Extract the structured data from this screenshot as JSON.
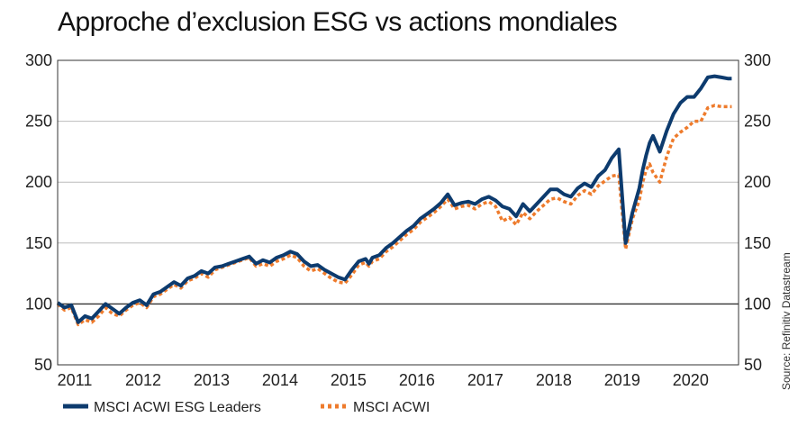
{
  "title": "Approche d’exclusion ESG vs actions mondiales",
  "source": "Source: Refinitiv Datastream",
  "colors": {
    "esg": "#0d3b6e",
    "acwi": "#ee7b2c",
    "grid": "#bbbbbb",
    "baseline": "#333333"
  },
  "chart_data": {
    "type": "line",
    "title": "Approche d’exclusion ESG vs actions mondiales",
    "xlabel": "",
    "ylabel": "",
    "xlim": [
      2011.0,
      2020.95
    ],
    "ylim": [
      50,
      300
    ],
    "y_ticks": [
      50,
      100,
      150,
      200,
      250,
      300
    ],
    "x_tick_labels": [
      "2011",
      "2012",
      "2013",
      "2014",
      "2015",
      "2016",
      "2017",
      "2018",
      "2019",
      "2020"
    ],
    "x_tick_values": [
      2011,
      2012,
      2013,
      2014,
      2015,
      2016,
      2017,
      2018,
      2019,
      2020
    ],
    "reference_line": 100,
    "grid": true,
    "dual_y_axis": true,
    "legend_position": "bottom",
    "series": [
      {
        "name": "MSCI ACWI ESG Leaders",
        "style": "solid",
        "x": [
          2011.0,
          2011.1,
          2011.2,
          2011.3,
          2011.4,
          2011.5,
          2011.6,
          2011.7,
          2011.8,
          2011.9,
          2012.0,
          2012.1,
          2012.2,
          2012.3,
          2012.4,
          2012.5,
          2012.6,
          2012.7,
          2012.8,
          2012.9,
          2013.0,
          2013.1,
          2013.2,
          2013.3,
          2013.4,
          2013.5,
          2013.6,
          2013.7,
          2013.8,
          2013.9,
          2014.0,
          2014.1,
          2014.2,
          2014.3,
          2014.4,
          2014.5,
          2014.6,
          2014.7,
          2014.8,
          2014.9,
          2015.0,
          2015.1,
          2015.2,
          2015.3,
          2015.4,
          2015.5,
          2015.55,
          2015.6,
          2015.7,
          2015.8,
          2015.9,
          2016.0,
          2016.1,
          2016.2,
          2016.3,
          2016.4,
          2016.5,
          2016.6,
          2016.7,
          2016.8,
          2016.9,
          2017.0,
          2017.1,
          2017.2,
          2017.3,
          2017.4,
          2017.5,
          2017.6,
          2017.7,
          2017.8,
          2017.9,
          2018.0,
          2018.1,
          2018.2,
          2018.3,
          2018.4,
          2018.5,
          2018.6,
          2018.7,
          2018.8,
          2018.9,
          2019.0,
          2019.1,
          2019.2,
          2019.3,
          2019.4,
          2019.5,
          2019.55,
          2019.6,
          2019.65,
          2019.7,
          2019.8,
          2019.9,
          2020.0,
          2020.1,
          2020.2,
          2020.3,
          2020.4,
          2020.5,
          2020.6,
          2020.7,
          2020.8,
          2020.85
        ],
        "values": [
          101,
          97,
          99,
          85,
          90,
          88,
          94,
          100,
          96,
          92,
          97,
          101,
          103,
          99,
          108,
          110,
          114,
          118,
          115,
          121,
          123,
          127,
          125,
          130,
          131,
          133,
          135,
          137,
          139,
          133,
          136,
          134,
          138,
          140,
          143,
          141,
          135,
          131,
          132,
          128,
          125,
          122,
          120,
          128,
          135,
          137,
          133,
          138,
          140,
          146,
          150,
          155,
          160,
          164,
          170,
          174,
          178,
          183,
          190,
          181,
          183,
          184,
          182,
          186,
          188,
          185,
          180,
          178,
          172,
          182,
          176,
          182,
          188,
          194,
          194,
          190,
          188,
          195,
          199,
          196,
          205,
          210,
          220,
          227,
          150,
          175,
          195,
          210,
          222,
          232,
          238,
          225,
          242,
          256,
          265,
          270,
          270,
          277,
          286,
          287,
          286,
          285,
          285
        ],
        "color": "#0d3b6e"
      },
      {
        "name": "MSCI ACWI",
        "style": "dotted",
        "x": [
          2011.0,
          2011.1,
          2011.2,
          2011.3,
          2011.4,
          2011.5,
          2011.6,
          2011.7,
          2011.8,
          2011.9,
          2012.0,
          2012.1,
          2012.2,
          2012.3,
          2012.4,
          2012.5,
          2012.6,
          2012.7,
          2012.8,
          2012.9,
          2013.0,
          2013.1,
          2013.2,
          2013.3,
          2013.4,
          2013.5,
          2013.6,
          2013.7,
          2013.8,
          2013.9,
          2014.0,
          2014.1,
          2014.2,
          2014.3,
          2014.4,
          2014.5,
          2014.6,
          2014.7,
          2014.8,
          2014.9,
          2015.0,
          2015.1,
          2015.2,
          2015.3,
          2015.4,
          2015.5,
          2015.55,
          2015.6,
          2015.7,
          2015.8,
          2015.9,
          2016.0,
          2016.1,
          2016.2,
          2016.3,
          2016.4,
          2016.5,
          2016.6,
          2016.7,
          2016.8,
          2016.9,
          2017.0,
          2017.1,
          2017.2,
          2017.3,
          2017.4,
          2017.5,
          2017.6,
          2017.7,
          2017.8,
          2017.9,
          2018.0,
          2018.1,
          2018.2,
          2018.3,
          2018.4,
          2018.5,
          2018.6,
          2018.7,
          2018.8,
          2018.9,
          2019.0,
          2019.1,
          2019.2,
          2019.3,
          2019.4,
          2019.5,
          2019.55,
          2019.6,
          2019.65,
          2019.7,
          2019.8,
          2019.9,
          2020.0,
          2020.1,
          2020.2,
          2020.3,
          2020.4,
          2020.5,
          2020.6,
          2020.7,
          2020.8,
          2020.85
        ],
        "values": [
          100,
          95,
          97,
          83,
          87,
          85,
          90,
          97,
          92,
          90,
          95,
          99,
          101,
          97,
          106,
          108,
          112,
          116,
          113,
          119,
          121,
          125,
          122,
          128,
          130,
          132,
          134,
          136,
          138,
          131,
          133,
          131,
          135,
          137,
          140,
          138,
          131,
          127,
          129,
          125,
          121,
          118,
          117,
          124,
          132,
          134,
          131,
          135,
          137,
          143,
          147,
          152,
          157,
          161,
          167,
          171,
          175,
          180,
          186,
          178,
          180,
          181,
          178,
          182,
          184,
          180,
          168,
          171,
          165,
          175,
          170,
          176,
          181,
          186,
          187,
          184,
          182,
          189,
          193,
          190,
          197,
          201,
          205,
          206,
          145,
          170,
          185,
          200,
          210,
          215,
          208,
          200,
          221,
          236,
          241,
          245,
          250,
          250,
          261,
          263,
          262,
          262,
          262
        ],
        "color": "#ee7b2c"
      }
    ]
  }
}
